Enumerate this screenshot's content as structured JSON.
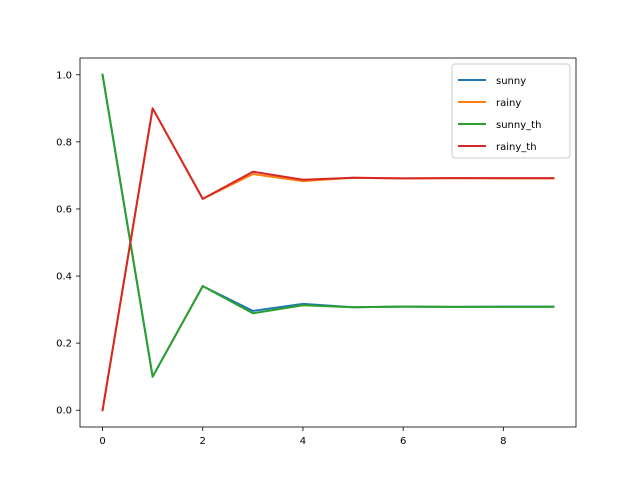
{
  "chart_data": {
    "type": "line",
    "title": "",
    "xlabel": "",
    "ylabel": "",
    "x": [
      0,
      1,
      2,
      3,
      4,
      5,
      6,
      7,
      8,
      9
    ],
    "xlim": [
      -0.45,
      9.45
    ],
    "ylim": [
      -0.05,
      1.05
    ],
    "xticks": [
      0,
      2,
      4,
      6,
      8
    ],
    "yticks": [
      0.0,
      0.2,
      0.4,
      0.6,
      0.8,
      1.0
    ],
    "xtick_labels": [
      "0",
      "2",
      "4",
      "6",
      "8"
    ],
    "ytick_labels": [
      "0.0",
      "0.2",
      "0.4",
      "0.6",
      "0.8",
      "1.0"
    ],
    "grid": false,
    "legend_position": "top-right",
    "series": [
      {
        "name": "sunny",
        "color": "#1f77b4",
        "values": [
          1.0,
          0.1,
          0.37,
          0.296,
          0.317,
          0.307,
          0.309,
          0.308,
          0.309,
          0.309
        ]
      },
      {
        "name": "rainy",
        "color": "#ff7f0e",
        "values": [
          0.0,
          0.9,
          0.63,
          0.704,
          0.683,
          0.693,
          0.691,
          0.692,
          0.691,
          0.691
        ]
      },
      {
        "name": "sunny_th",
        "color": "#2ca02c",
        "values": [
          1.0,
          0.1,
          0.37,
          0.289,
          0.313,
          0.307,
          0.309,
          0.308,
          0.308,
          0.308
        ]
      },
      {
        "name": "rainy_th",
        "color": "#d62728",
        "values": [
          0.0,
          0.9,
          0.63,
          0.711,
          0.687,
          0.693,
          0.691,
          0.692,
          0.692,
          0.692
        ]
      }
    ]
  }
}
